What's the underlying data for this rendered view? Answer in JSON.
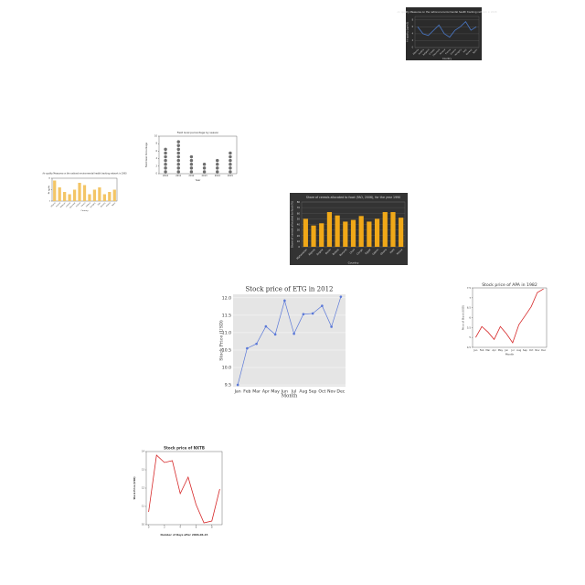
{
  "chart_data": [
    {
      "type": "line",
      "title": "Air quality Measures on the national environmental health tracking network in 2008",
      "xlabel": "Country",
      "ylabel": "Air quality (ug/m3)",
      "categories": [
        "Albania",
        "Austria",
        "Belgium",
        "Croatia",
        "Denmark",
        "Finland",
        "France",
        "Greece",
        "Hungary",
        "Italy",
        "Norway",
        "Spain"
      ],
      "values": [
        6,
        4,
        3.5,
        5,
        6.5,
        4,
        3,
        5,
        6,
        7.5,
        5,
        6
      ],
      "ylim": [
        0,
        9
      ],
      "yticks": [
        0,
        2,
        4,
        6,
        8
      ],
      "color": "#4a78c8",
      "background": "#2b2b2b",
      "grid": true
    },
    {
      "type": "dot",
      "title": "Field Goal percentage by season",
      "xlabel": "Year",
      "ylabel": "Field Goal Percentage",
      "categories": [
        "2010",
        "2011",
        "2012",
        "2013",
        "2014",
        "2015"
      ],
      "values": [
        7,
        9,
        5,
        3,
        4,
        6
      ],
      "ylim": [
        0,
        10
      ],
      "yticks": [
        0,
        2,
        4,
        6,
        8,
        10
      ],
      "color": "#6e6e6e",
      "background": "#ffffff",
      "grid": false
    },
    {
      "type": "bar",
      "title": "Air quality Measures on the national environmental health tracking network in 1990",
      "xlabel": "Country",
      "ylabel": "Air quality",
      "categories": [
        "Albania",
        "Austria",
        "Belgium",
        "Croatia",
        "Denmark",
        "Finland",
        "France",
        "Greece",
        "Hungary",
        "Italy",
        "Norway",
        "Poland",
        "Spain"
      ],
      "values": [
        9,
        6,
        4,
        3,
        5,
        8,
        7,
        3,
        5,
        6,
        3,
        4,
        5
      ],
      "ylim": [
        0,
        10
      ],
      "yticks": [
        0,
        5,
        10
      ],
      "color": "#f3c566",
      "background": "#ffffff",
      "grid": false
    },
    {
      "type": "bar",
      "title": "Share of cereals allocated to food (FAO, 2006), for the year 1990",
      "xlabel": "Country",
      "ylabel": "Share of cereals allocated to food (%)",
      "categories": [
        "Afghanistan",
        "Algeria",
        "Angola",
        "Benin",
        "Bolivia",
        "Burundi",
        "Chad",
        "Congo",
        "Egypt",
        "Gabon",
        "Ghana",
        "Haiti",
        "Kenya"
      ],
      "values": [
        50,
        38,
        42,
        62,
        56,
        45,
        48,
        55,
        45,
        50,
        62,
        62,
        52
      ],
      "ylim": [
        0,
        80
      ],
      "yticks": [
        0,
        10,
        20,
        30,
        40,
        50,
        60,
        70,
        80
      ],
      "color": "#f0a818",
      "background": "#333333",
      "grid": true
    },
    {
      "type": "line",
      "title": "Stock price of ETG in 2012",
      "xlabel": "Month",
      "ylabel": "Stock Price (USD)",
      "categories": [
        "Jan",
        "Feb",
        "Mar",
        "Apr",
        "May",
        "Jun",
        "Jul",
        "Aug",
        "Sep",
        "Oct",
        "Nov",
        "Dec"
      ],
      "values": [
        9.5,
        10.55,
        10.68,
        11.18,
        10.95,
        11.92,
        10.97,
        11.53,
        11.55,
        11.77,
        11.17,
        12.03
      ],
      "ylim": [
        9.45,
        12.1
      ],
      "yticks": [
        {
          "value": 9.5,
          "label": "9.5"
        },
        {
          "value": 10,
          "label": "10.0"
        },
        {
          "value": 10.5,
          "label": "10.5"
        },
        {
          "value": 11,
          "label": "11.0"
        },
        {
          "value": 11.5,
          "label": "11.5"
        },
        {
          "value": 12,
          "label": "12.0"
        }
      ],
      "color": "#5a78d8",
      "markers": true,
      "background": "#ffffff",
      "plot_background": "#e5e5e5",
      "grid": true
    },
    {
      "type": "line",
      "title": "Stock price of APA in 1982",
      "xlabel": "Month",
      "ylabel": "Price of Stock (USD)",
      "categories": [
        "Jan",
        "Feb",
        "Mar",
        "Apr",
        "May",
        "Jun",
        "Jul",
        "Aug",
        "Sep",
        "Oct",
        "Nov",
        "Dec"
      ],
      "values": [
        5.0,
        5.55,
        5.27,
        4.9,
        5.55,
        5.18,
        4.73,
        5.64,
        6.09,
        6.55,
        7.27,
        7.45
      ],
      "ylim": [
        4.5,
        7.5
      ],
      "yticks": [
        4.5,
        5,
        5.5,
        6,
        6.5,
        7,
        7.5
      ],
      "color": "#d62728",
      "background": "#ffffff",
      "grid": false
    },
    {
      "type": "line",
      "title": "Stock price of NXTB",
      "xlabel": "Number of Days after 2006-06-15",
      "ylabel": "Stock Price (USD)",
      "x": [
        0,
        1,
        2,
        3,
        4,
        5,
        6,
        7,
        8,
        9
      ],
      "values": [
        10.7,
        13.8,
        13.4,
        13.5,
        11.7,
        12.6,
        11.1,
        10.1,
        10.2,
        11.95
      ],
      "xlim": [
        -0.3,
        9.3
      ],
      "xticks": [
        0,
        2,
        4,
        6,
        8
      ],
      "ylim": [
        10,
        14
      ],
      "yticks": [
        10,
        11,
        12,
        13,
        14
      ],
      "color": "#d62728",
      "background": "#ffffff",
      "grid": false
    }
  ]
}
